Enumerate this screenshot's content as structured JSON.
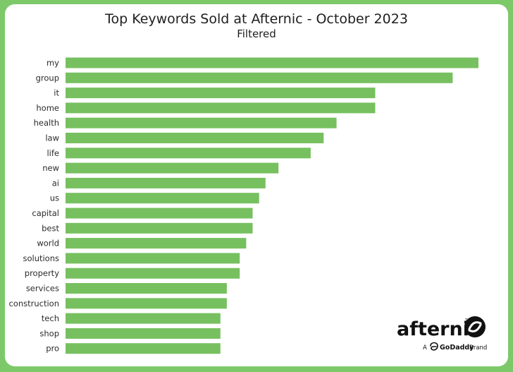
{
  "chart_data": {
    "type": "bar",
    "orientation": "horizontal",
    "title": "Top Keywords Sold at Afternic - October 2023",
    "subtitle": "Filtered",
    "categories": [
      "my",
      "group",
      "it",
      "home",
      "health",
      "law",
      "life",
      "new",
      "ai",
      "us",
      "capital",
      "best",
      "world",
      "solutions",
      "property",
      "services",
      "construction",
      "tech",
      "shop",
      "pro"
    ],
    "values": [
      64,
      60,
      48,
      48,
      42,
      40,
      38,
      33,
      31,
      30,
      29,
      29,
      28,
      27,
      27,
      25,
      25,
      24,
      24,
      24
    ],
    "xlim": [
      0,
      64
    ],
    "xlabel": "",
    "ylabel": "",
    "grid": false,
    "legend": "none",
    "bar_color": "#77c060"
  },
  "branding": {
    "logo_word": "afternic",
    "trademark": "TM",
    "tagline_prefix": "A",
    "tagline_brand": "GoDaddy",
    "tagline_suffix": "Brand"
  },
  "colors": {
    "frame": "#7dc96a",
    "background": "#ffffff",
    "bar": "#77c060",
    "text": "#1e1e1e"
  },
  "icons": {
    "logo_mark": "afternic-swirl-icon",
    "godaddy_mark": "godaddy-icon"
  }
}
